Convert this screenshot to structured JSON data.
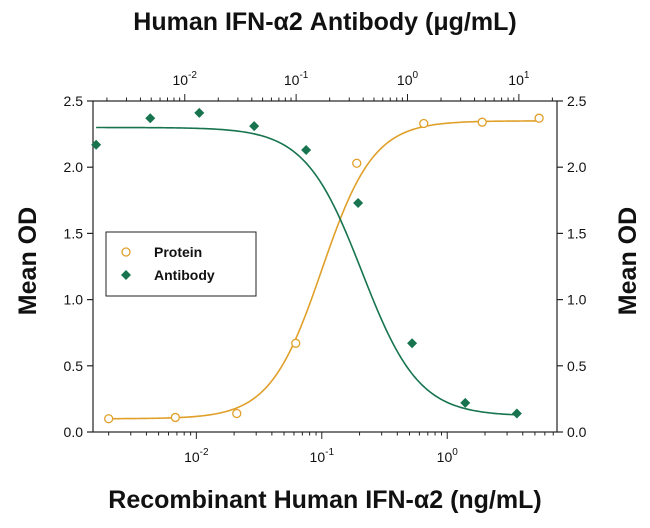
{
  "titles": {
    "top": "Human IFN-α2 Antibody (μg/mL)",
    "bottom": "Recombinant Human IFN-α2 (ng/mL)",
    "y_left": "Mean OD",
    "y_right": "Mean OD"
  },
  "colors": {
    "protein": "#e0a02a",
    "antibody": "#17744f",
    "axis": "#222222"
  },
  "chart_data": {
    "type": "scatter",
    "title": "Human IFN-α2 Antibody (μg/mL)",
    "xlabel": "Recombinant Human IFN-α2 (ng/mL)",
    "ylabel": "Mean OD",
    "x_scale": "log",
    "bottom_axis": {
      "label": "Recombinant Human IFN-α2 (ng/mL)",
      "xlim": [
        0.0015,
        7.5
      ],
      "ticks": [
        {
          "value": 0.01,
          "base": "10",
          "exp": "-2"
        },
        {
          "value": 0.1,
          "base": "10",
          "exp": "-1"
        },
        {
          "value": 1,
          "base": "10",
          "exp": "0"
        }
      ]
    },
    "top_axis": {
      "label": "Human IFN-α2 Antibody (μg/mL)",
      "xlim": [
        0.0015,
        22
      ],
      "ticks": [
        {
          "value": 0.01,
          "base": "10",
          "exp": "-2"
        },
        {
          "value": 0.1,
          "base": "10",
          "exp": "-1"
        },
        {
          "value": 1,
          "base": "10",
          "exp": "0"
        },
        {
          "value": 10,
          "base": "10",
          "exp": "1"
        }
      ]
    },
    "ylim": [
      0,
      2.5
    ],
    "y_ticks": [
      "0.0",
      "0.5",
      "1.0",
      "1.5",
      "2.0",
      "2.5"
    ],
    "legend_position": "center-left",
    "series": [
      {
        "name": "Protein",
        "axis": "bottom",
        "marker": "open-circle",
        "x": [
          0.002,
          0.0068,
          0.021,
          0.062,
          0.19,
          0.65,
          1.9,
          5.4
        ],
        "y": [
          0.1,
          0.11,
          0.14,
          0.67,
          2.03,
          2.33,
          2.34,
          2.37
        ],
        "fit": {
          "bottom": 0.1,
          "top": 2.35,
          "ec50": 0.1,
          "hill": 2.1
        }
      },
      {
        "name": "Antibody",
        "axis": "top",
        "marker": "filled-diamond",
        "x": [
          0.0016,
          0.0049,
          0.0135,
          0.042,
          0.123,
          0.36,
          1.1,
          3.3,
          9.6
        ],
        "y": [
          2.17,
          2.37,
          2.41,
          2.31,
          2.13,
          1.73,
          0.67,
          0.22,
          0.14
        ],
        "fit": {
          "bottom": 0.12,
          "top": 2.3,
          "ec50": 0.39,
          "hill": 1.7
        }
      }
    ]
  }
}
